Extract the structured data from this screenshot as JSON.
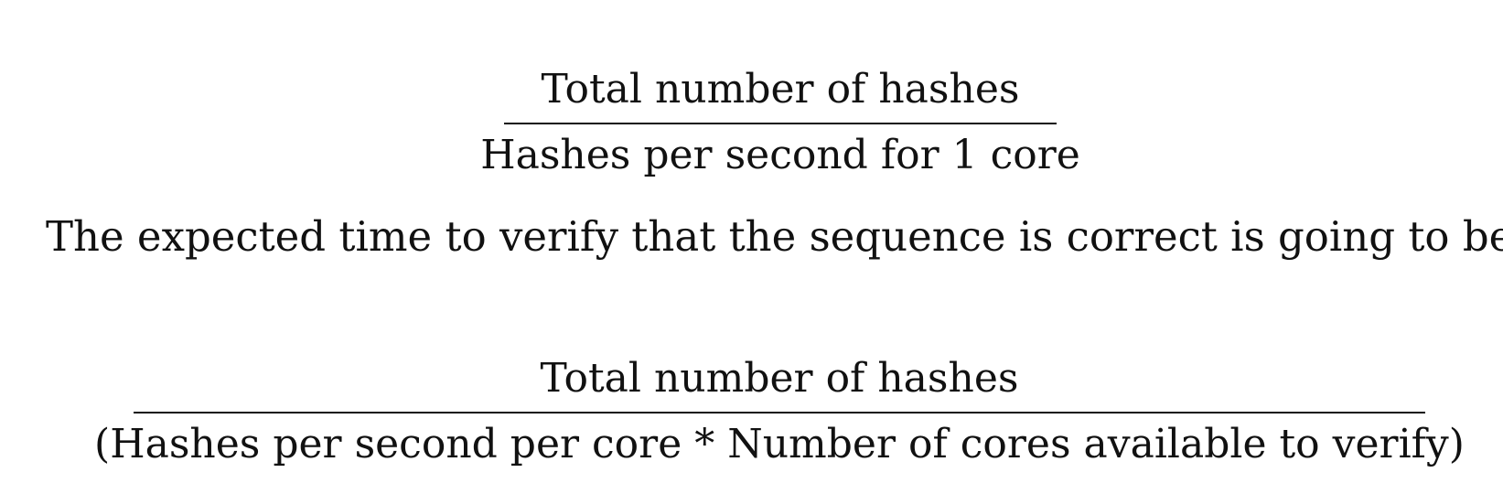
{
  "formula_1": {
    "numerator": "Total number of hashes",
    "denominator": "Hashes per second for 1 core"
  },
  "sentence": "The expected time to verify that the sequence is correct is going to be:",
  "formula_2": {
    "numerator": "Total number of hashes",
    "denominator": "(Hashes per second per core * Number of cores available to verify)"
  }
}
